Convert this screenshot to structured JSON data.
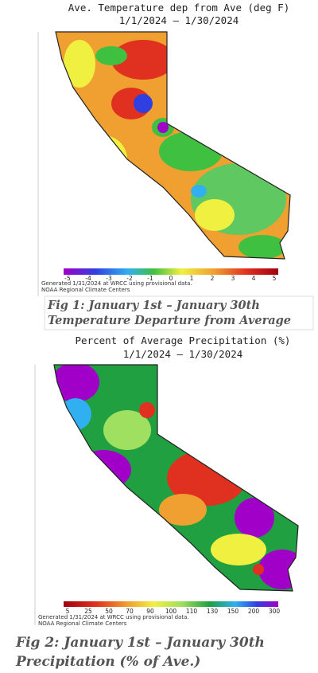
{
  "fig1": {
    "title": "Ave. Temperature dep from Ave (deg F)",
    "date_range": "1/1/2024 – 1/30/2024",
    "scale_labels": [
      "-5",
      "-4",
      "-3",
      "-2",
      "-1",
      "0",
      "1",
      "2",
      "3",
      "4",
      "5"
    ],
    "generated": "Generated 1/31/2024 at WRCC using provisional data.",
    "source": "NOAA Regional Climate Centers",
    "caption": [
      "Fig 1: January 1st – January 30th",
      "Temperature Departure from Average"
    ]
  },
  "fig2": {
    "title": "Percent of Average Precipitation (%)",
    "date_range": "1/1/2024 – 1/30/2024",
    "scale_labels": [
      "5",
      "25",
      "50",
      "70",
      "90",
      "100",
      "110",
      "130",
      "150",
      "200",
      "300"
    ],
    "generated": "Generated 1/31/2024 at WRCC using provisional data.",
    "source": "NOAA Regional Climate Centers",
    "caption": [
      "Fig 2: January 1st – January 30th",
      "Precipitation (% of Ave.)"
    ]
  }
}
